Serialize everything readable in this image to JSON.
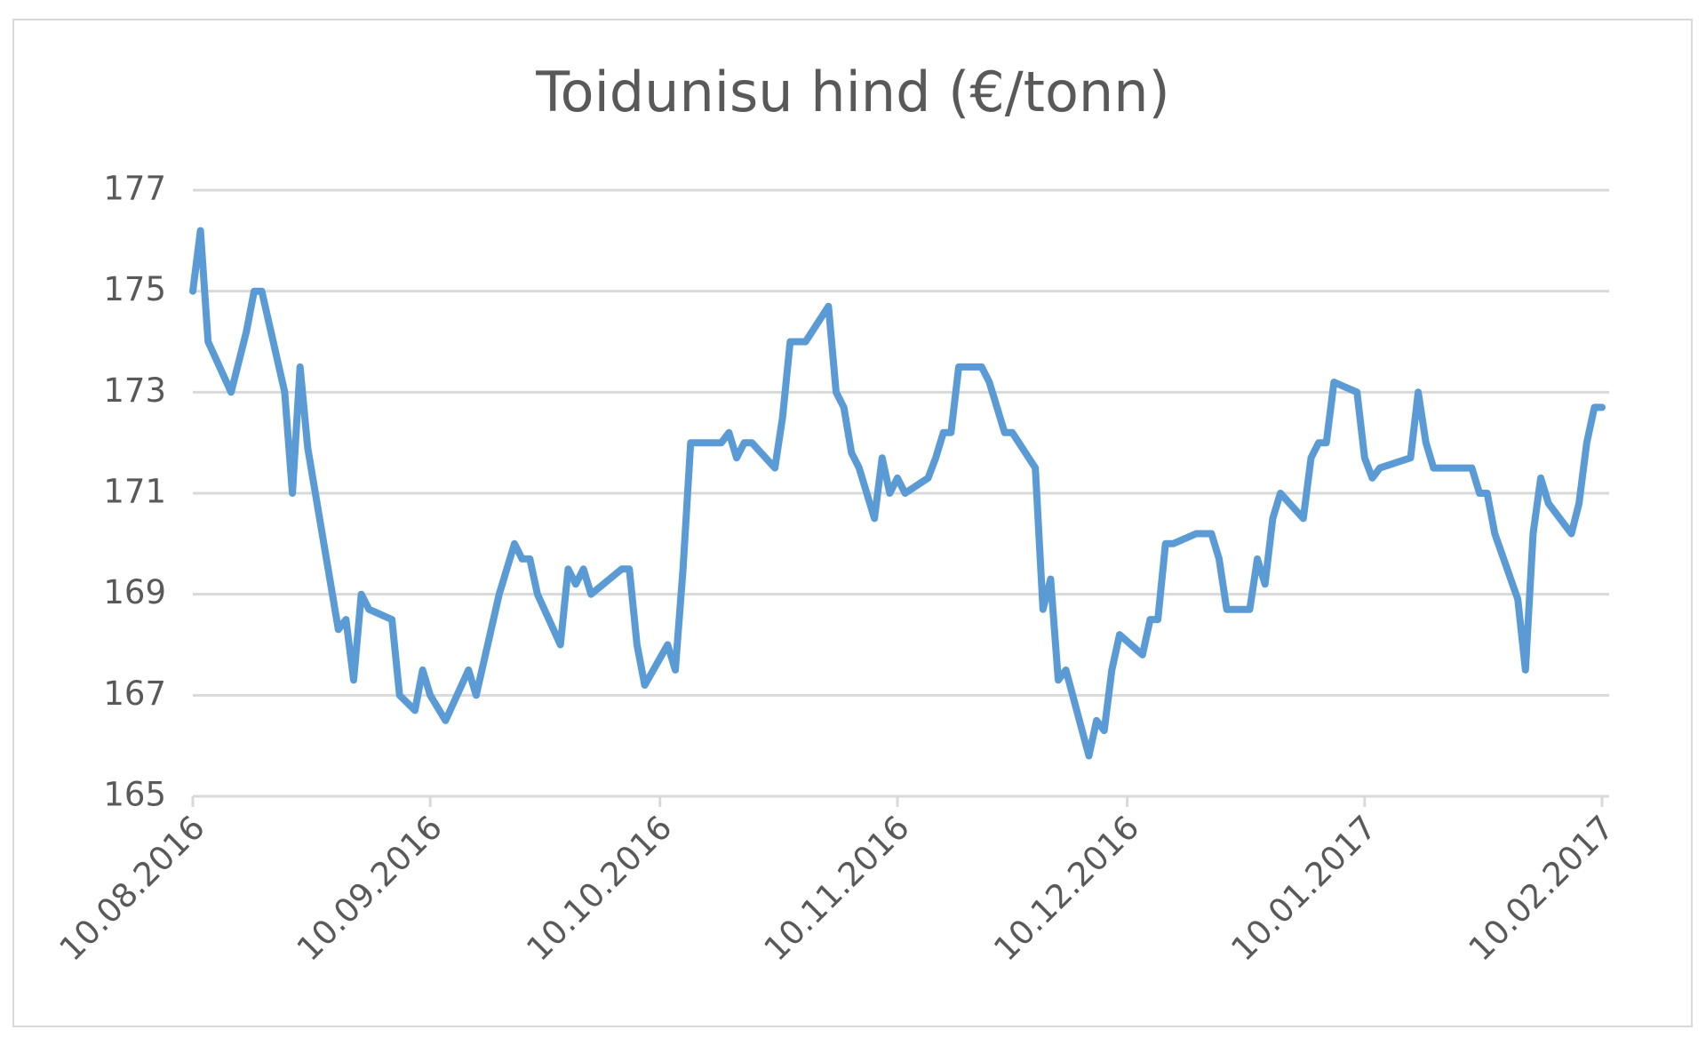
{
  "chart_data": {
    "type": "line",
    "title": "Toidunisu hind (€/tonn)",
    "x": [
      "10.08.2016",
      "11.08.2016",
      "12.08.2016",
      "15.08.2016",
      "17.08.2016",
      "18.08.2016",
      "19.08.2016",
      "22.08.2016",
      "23.08.2016",
      "24.08.2016",
      "25.08.2016",
      "26.08.2016",
      "29.08.2016",
      "30.08.2016",
      "31.08.2016",
      "01.09.2016",
      "02.09.2016",
      "05.09.2016",
      "06.09.2016",
      "08.09.2016",
      "09.09.2016",
      "10.09.2016",
      "12.09.2016",
      "15.09.2016",
      "16.09.2016",
      "19.09.2016",
      "21.09.2016",
      "22.09.2016",
      "23.09.2016",
      "24.09.2016",
      "27.09.2016",
      "28.09.2016",
      "29.09.2016",
      "30.09.2016",
      "01.10.2016",
      "05.10.2016",
      "06.10.2016",
      "07.10.2016",
      "08.10.2016",
      "11.10.2016",
      "12.10.2016",
      "13.10.2016",
      "14.10.2016",
      "18.10.2016",
      "19.10.2016",
      "20.10.2016",
      "21.10.2016",
      "22.10.2016",
      "25.10.2016",
      "26.10.2016",
      "27.10.2016",
      "29.10.2016",
      "01.11.2016",
      "02.11.2016",
      "03.11.2016",
      "04.11.2016",
      "05.11.2016",
      "07.11.2016",
      "08.11.2016",
      "09.11.2016",
      "10.11.2016",
      "11.11.2016",
      "14.11.2016",
      "15.11.2016",
      "16.11.2016",
      "17.11.2016",
      "18.11.2016",
      "21.11.2016",
      "22.11.2016",
      "24.11.2016",
      "25.11.2016",
      "28.11.2016",
      "29.11.2016",
      "30.11.2016",
      "01.12.2016",
      "02.12.2016",
      "05.12.2016",
      "06.12.2016",
      "07.12.2016",
      "08.12.2016",
      "09.12.2016",
      "12.12.2016",
      "13.12.2016",
      "14.12.2016",
      "15.12.2016",
      "16.12.2016",
      "19.12.2016",
      "21.12.2016",
      "22.12.2016",
      "23.12.2016",
      "26.12.2016",
      "27.12.2016",
      "28.12.2016",
      "29.12.2016",
      "30.12.2016",
      "02.01.2017",
      "03.01.2017",
      "04.01.2017",
      "05.01.2017",
      "06.01.2017",
      "09.01.2017",
      "10.01.2017",
      "11.01.2017",
      "12.01.2017",
      "16.01.2017",
      "17.01.2017",
      "18.01.2017",
      "19.01.2017",
      "24.01.2017",
      "25.01.2017",
      "26.01.2017",
      "27.01.2017",
      "30.01.2017",
      "31.01.2017",
      "01.02.2017",
      "02.02.2017",
      "03.02.2017",
      "06.02.2017",
      "07.02.2017",
      "08.02.2017",
      "09.02.2017",
      "10.02.2017"
    ],
    "series": [
      {
        "color": "#5b9bd5",
        "values": [
          175,
          176.2,
          174,
          173,
          174.2,
          175,
          175,
          173,
          171,
          173.5,
          171.9,
          171,
          168.3,
          168.5,
          167.3,
          169,
          168.7,
          168.5,
          167,
          166.7,
          167.5,
          167,
          166.5,
          167.5,
          167,
          169,
          170,
          169.7,
          169.7,
          169,
          168,
          169.5,
          169.2,
          169.5,
          169,
          169.5,
          169.5,
          168,
          167.2,
          168,
          167.5,
          169.5,
          172,
          172,
          172.2,
          171.7,
          172,
          172,
          171.5,
          172.5,
          174,
          174,
          174.7,
          173,
          172.7,
          171.8,
          171.5,
          170.5,
          171.7,
          171,
          171.3,
          171,
          171.3,
          171.7,
          172.2,
          172.2,
          173.5,
          173.5,
          173.2,
          172.2,
          172.2,
          171.5,
          168.7,
          169.3,
          167.3,
          167.5,
          165.8,
          166.5,
          166.3,
          167.5,
          168.2,
          167.8,
          168.5,
          168.5,
          170,
          170,
          170.2,
          170.2,
          169.7,
          168.7,
          168.7,
          169.7,
          169.2,
          170.5,
          171,
          170.5,
          171.7,
          172,
          172,
          173.2,
          173,
          171.7,
          171.3,
          171.5,
          171.7,
          173,
          172,
          171.5,
          171.5,
          171,
          171,
          170.2,
          168.9,
          167.5,
          170.2,
          171.3,
          170.8,
          170.2,
          170.8,
          172,
          172.7,
          172.7
        ]
      }
    ],
    "xlim": [
      "10.08.2016",
      "10.02.2017"
    ],
    "xticks": [
      "10.08.2016",
      "10.09.2016",
      "10.10.2016",
      "10.11.2016",
      "10.12.2016",
      "10.01.2017",
      "10.02.2017"
    ],
    "ylim": [
      165,
      177
    ],
    "yticks": [
      165,
      167,
      169,
      171,
      173,
      175,
      177
    ],
    "grid": true
  }
}
